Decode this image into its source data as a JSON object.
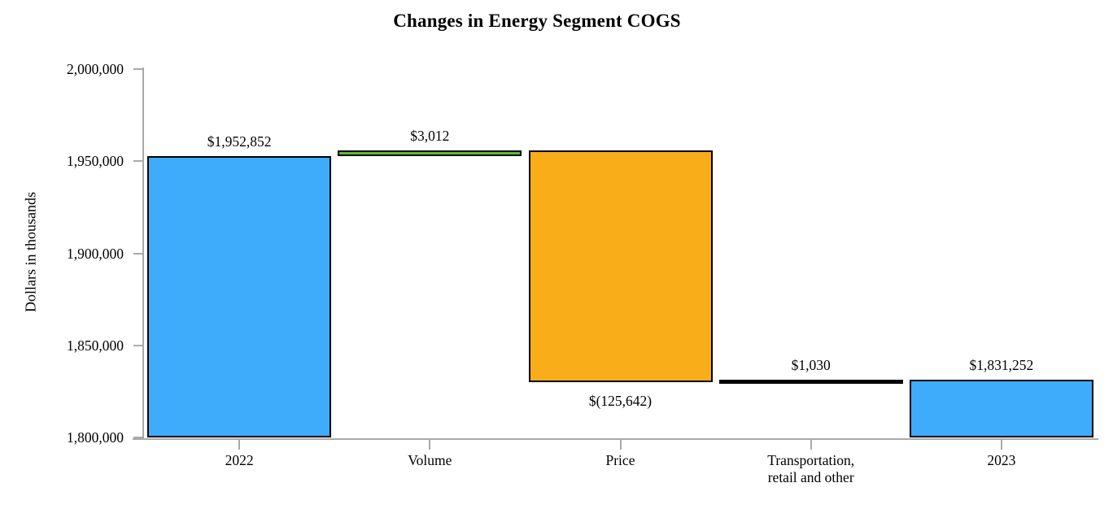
{
  "chart_data": {
    "type": "bar",
    "subtype": "waterfall",
    "title": "Changes in Energy Segment COGS",
    "ylabel": "Dollars in thousands",
    "xlabel": "",
    "grid": false,
    "legend": false,
    "y_axis": {
      "min": 1800000,
      "max": 2000000,
      "tick_step": 50000,
      "tick_labels": [
        "2,000,000",
        "1,950,000",
        "1,900,000",
        "1,850,000",
        "1,800,000"
      ]
    },
    "categories": [
      "2022",
      "Volume",
      "Price",
      "Transportation,\nretail and other",
      "2023"
    ],
    "bars": [
      {
        "category": "2022",
        "start": 1800000,
        "end": 1952852,
        "value": 1952852,
        "value_label": "$1,952,852",
        "label_position": "above",
        "color": "#3eacfb"
      },
      {
        "category": "Volume",
        "start": 1952852,
        "end": 1955864,
        "value": 3012,
        "value_label": "$3,012",
        "label_position": "above",
        "color": "#5ebb2b"
      },
      {
        "category": "Price",
        "start": 1955864,
        "end": 1830222,
        "value": -125642,
        "value_label": "$(125,642)",
        "label_position": "below",
        "color": "#f9ad18"
      },
      {
        "category": "Transportation,\nretail and other",
        "start": 1830222,
        "end": 1831252,
        "value": 1030,
        "value_label": "$1,030",
        "label_position": "above",
        "color": "#000000"
      },
      {
        "category": "2023",
        "start": 1800000,
        "end": 1831252,
        "value": 1831252,
        "value_label": "$1,831,252",
        "label_position": "above",
        "color": "#3eacfb"
      }
    ],
    "colors": {
      "total_bars": "#3eacfb",
      "increase_bar": "#5ebb2b",
      "decrease_bar": "#f9ad18",
      "small_increase_bar": "#000000",
      "bar_border": "#000000",
      "axis_line": "#a9a9a9",
      "text": "#000000"
    }
  }
}
